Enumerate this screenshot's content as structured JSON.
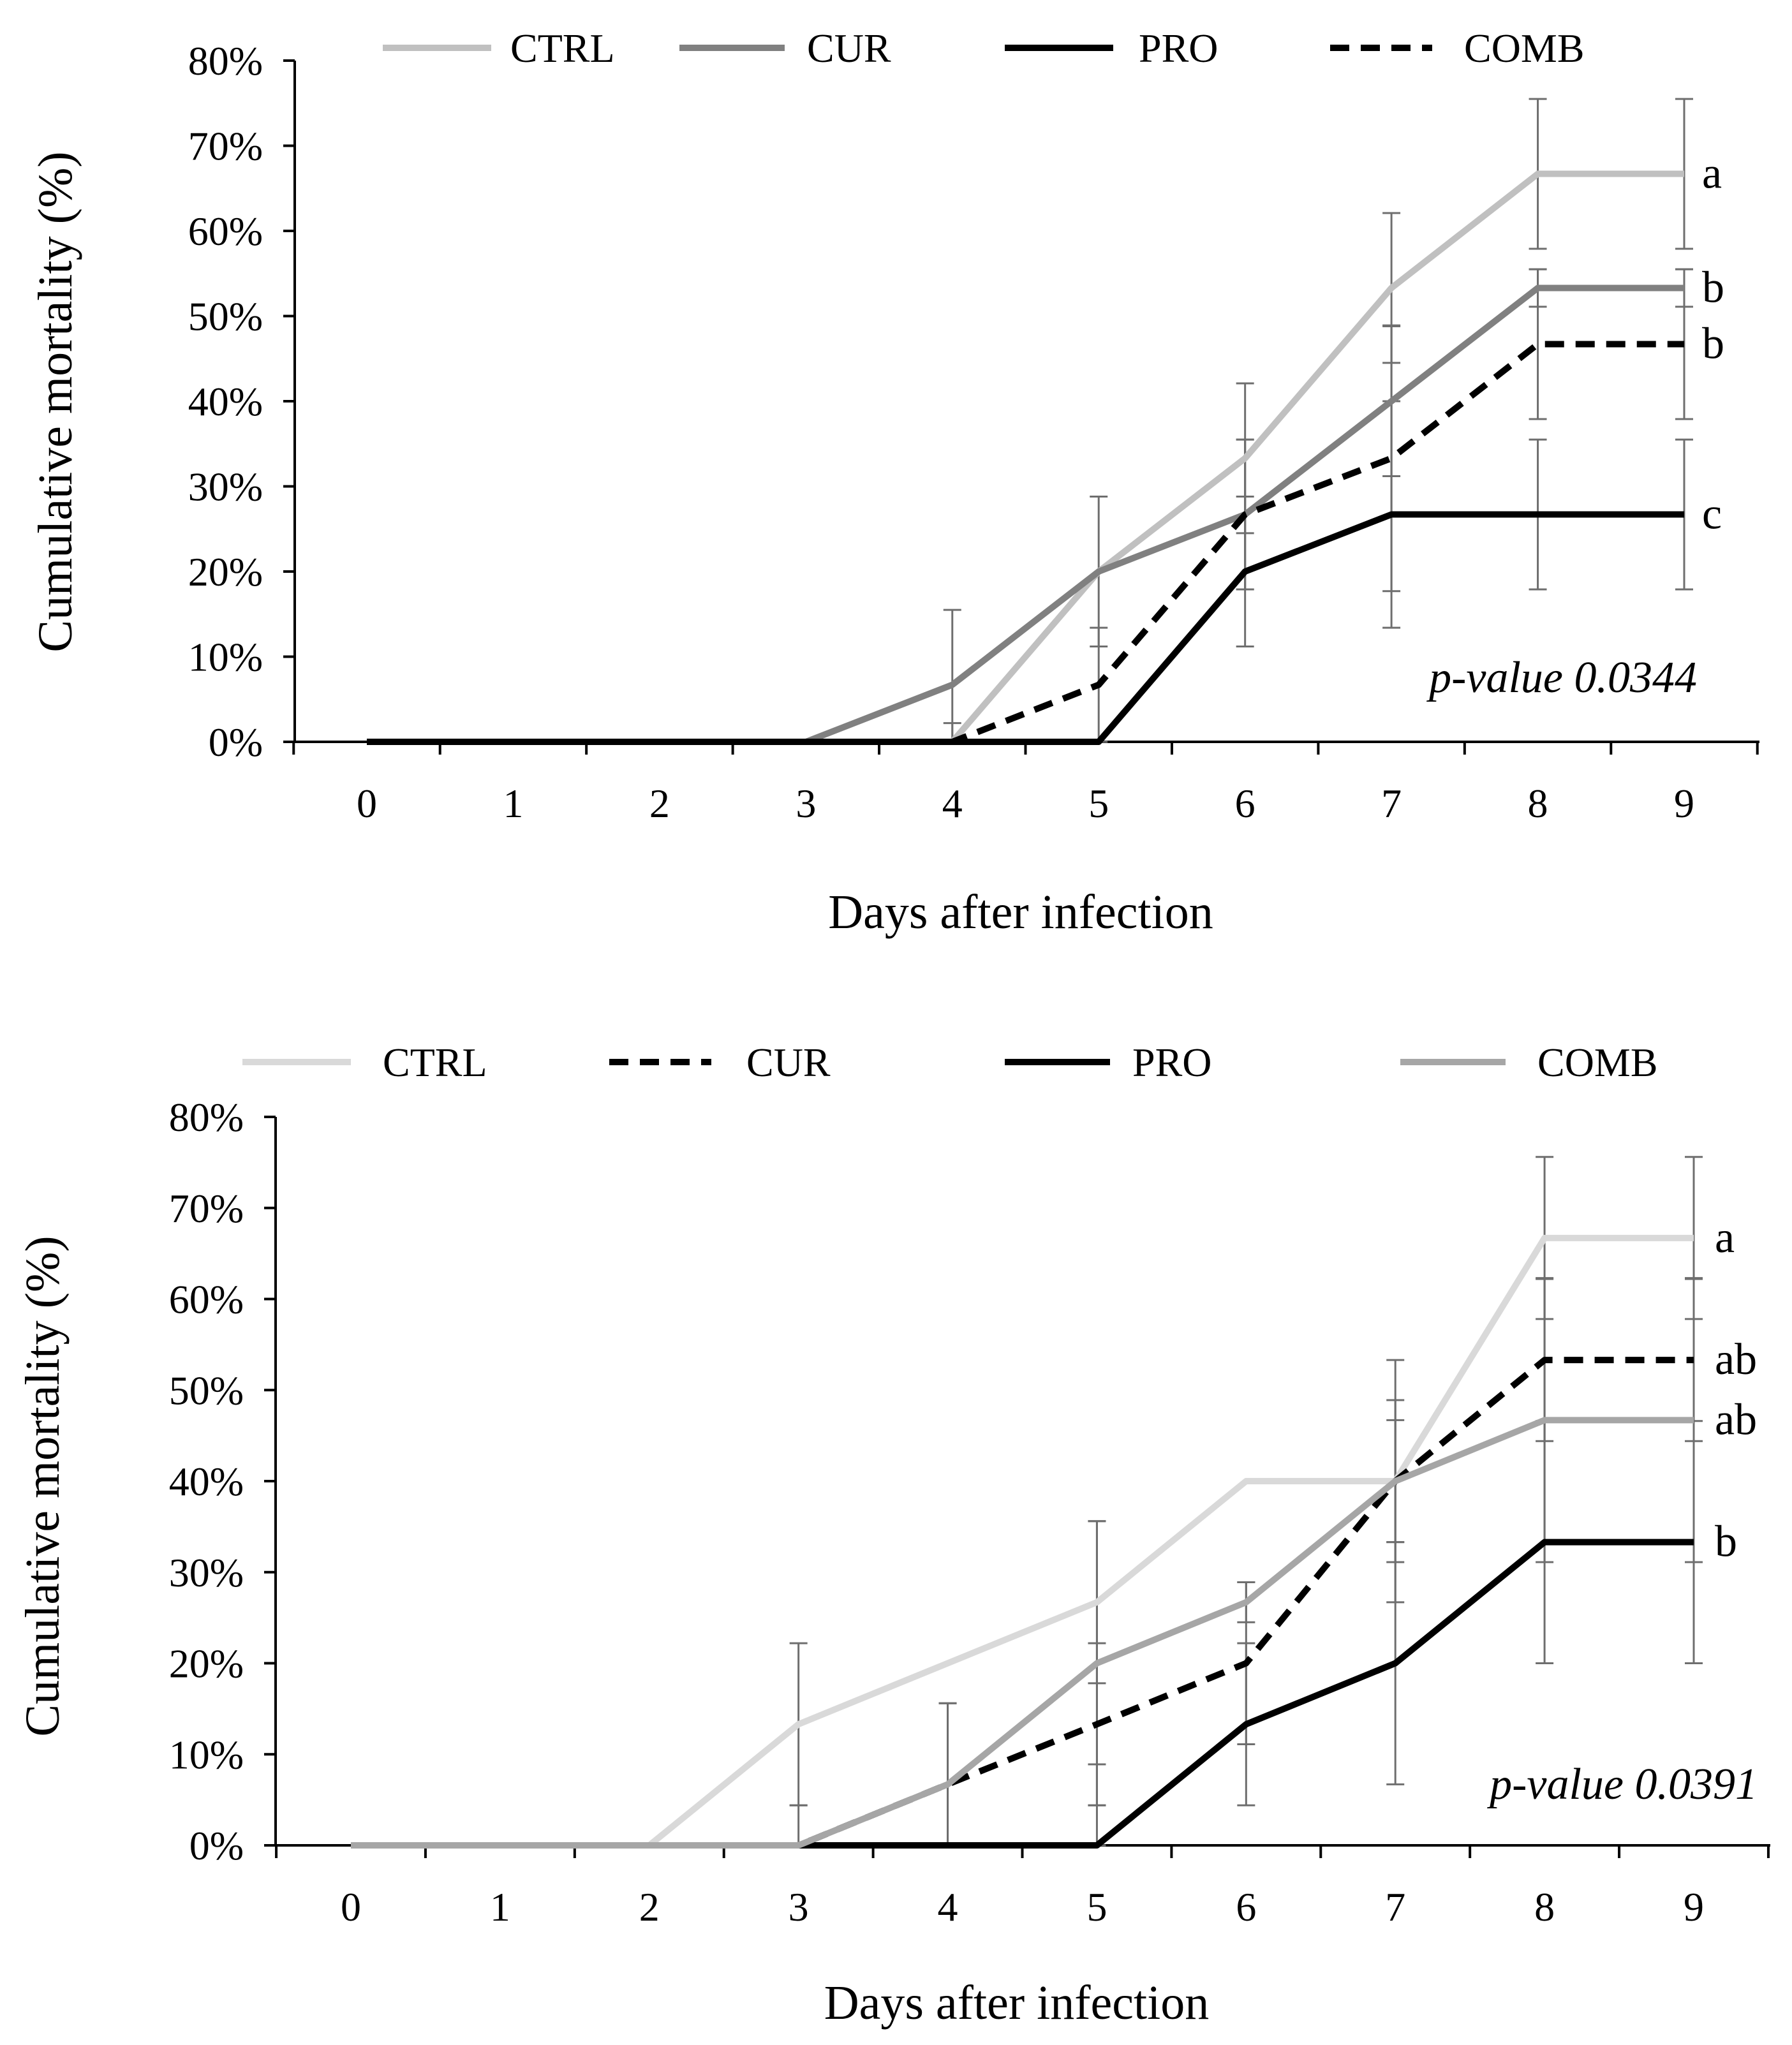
{
  "chart_data": [
    {
      "type": "line",
      "panel": "top",
      "xlabel": "Days after infection",
      "ylabel": "Cumulative mortality (%)",
      "x": [
        0,
        1,
        2,
        3,
        4,
        5,
        6,
        7,
        8,
        9
      ],
      "xticks": [
        "0",
        "1",
        "2",
        "3",
        "4",
        "5",
        "6",
        "7",
        "8",
        "9"
      ],
      "ylim": [
        0,
        80
      ],
      "yticks": [
        "0%",
        "10%",
        "20%",
        "30%",
        "40%",
        "50%",
        "60%",
        "70%",
        "80%"
      ],
      "legend_position": "top",
      "annotation": "p-value 0.0344",
      "series": [
        {
          "name": "CTRL",
          "color": "#c0c0c0",
          "dash": false,
          "values": [
            0,
            0,
            0,
            0,
            0,
            20,
            33.3,
            53.3,
            66.7,
            66.7
          ],
          "error": [
            null,
            null,
            null,
            null,
            null,
            null,
            8.8,
            8.8,
            8.8,
            8.8
          ],
          "letter": "a"
        },
        {
          "name": "CUR",
          "color": "#808080",
          "dash": false,
          "values": [
            0,
            0,
            0,
            0,
            6.7,
            20,
            26.7,
            40,
            53.3,
            53.3
          ],
          "error": [
            null,
            null,
            null,
            null,
            8.8,
            8.8,
            8.8,
            8.8,
            2.2,
            2.2
          ],
          "letter": "b"
        },
        {
          "name": "PRO",
          "color": "#000000",
          "dash": false,
          "values": [
            0,
            0,
            0,
            0,
            0,
            0,
            20,
            26.7,
            26.7,
            26.7
          ],
          "error": [
            null,
            null,
            null,
            null,
            null,
            null,
            8.8,
            13.3,
            8.8,
            8.8
          ],
          "letter": "c"
        },
        {
          "name": "COMB",
          "color": "#000000",
          "dash": true,
          "values": [
            0,
            0,
            0,
            0,
            0,
            6.7,
            26.7,
            33.3,
            46.7,
            46.7
          ],
          "error": [
            null,
            null,
            null,
            null,
            2.2,
            6.7,
            8.8,
            15.6,
            8.8,
            8.8
          ],
          "letter": "b"
        }
      ]
    },
    {
      "type": "line",
      "panel": "bottom",
      "xlabel": "Days after infection",
      "ylabel": "Cumulative mortality (%)",
      "x": [
        0,
        1,
        2,
        3,
        4,
        5,
        6,
        7,
        8,
        9
      ],
      "xticks": [
        "0",
        "1",
        "2",
        "3",
        "4",
        "5",
        "6",
        "7",
        "8",
        "9"
      ],
      "ylim": [
        0,
        80
      ],
      "yticks": [
        "0%",
        "10%",
        "20%",
        "30%",
        "40%",
        "50%",
        "60%",
        "70%",
        "80%"
      ],
      "legend_position": "top",
      "annotation": "p-value 0.0391",
      "series": [
        {
          "name": "CTRL",
          "color": "#d9d9d9",
          "dash": false,
          "values": [
            0,
            0,
            0,
            13.3,
            20,
            26.7,
            40,
            40,
            66.7,
            66.7
          ],
          "error": [
            null,
            null,
            null,
            8.9,
            null,
            8.9,
            null,
            13.3,
            8.9,
            8.9
          ],
          "letter": "a"
        },
        {
          "name": "CUR",
          "color": "#000000",
          "dash": true,
          "values": [
            0,
            0,
            0,
            0,
            6.7,
            13.3,
            20,
            40,
            53.3,
            53.3
          ],
          "error": [
            null,
            null,
            null,
            null,
            8.9,
            8.9,
            8.9,
            8.9,
            8.9,
            8.9
          ],
          "letter": "ab"
        },
        {
          "name": "PRO",
          "color": "#000000",
          "dash": false,
          "values": [
            0,
            0,
            0,
            0,
            0,
            0,
            13.3,
            20,
            33.3,
            33.3
          ],
          "error": [
            null,
            null,
            null,
            null,
            null,
            8.9,
            8.9,
            13.3,
            13.3,
            13.3
          ],
          "letter": "b"
        },
        {
          "name": "COMB",
          "color": "#a6a6a6",
          "dash": false,
          "values": [
            0,
            0,
            0,
            0,
            6.7,
            20,
            26.7,
            40,
            46.7,
            46.7
          ],
          "error": [
            null,
            null,
            null,
            4.4,
            8.9,
            15.6,
            2.2,
            6.7,
            15.6,
            15.6
          ],
          "letter": "ab"
        }
      ]
    }
  ]
}
